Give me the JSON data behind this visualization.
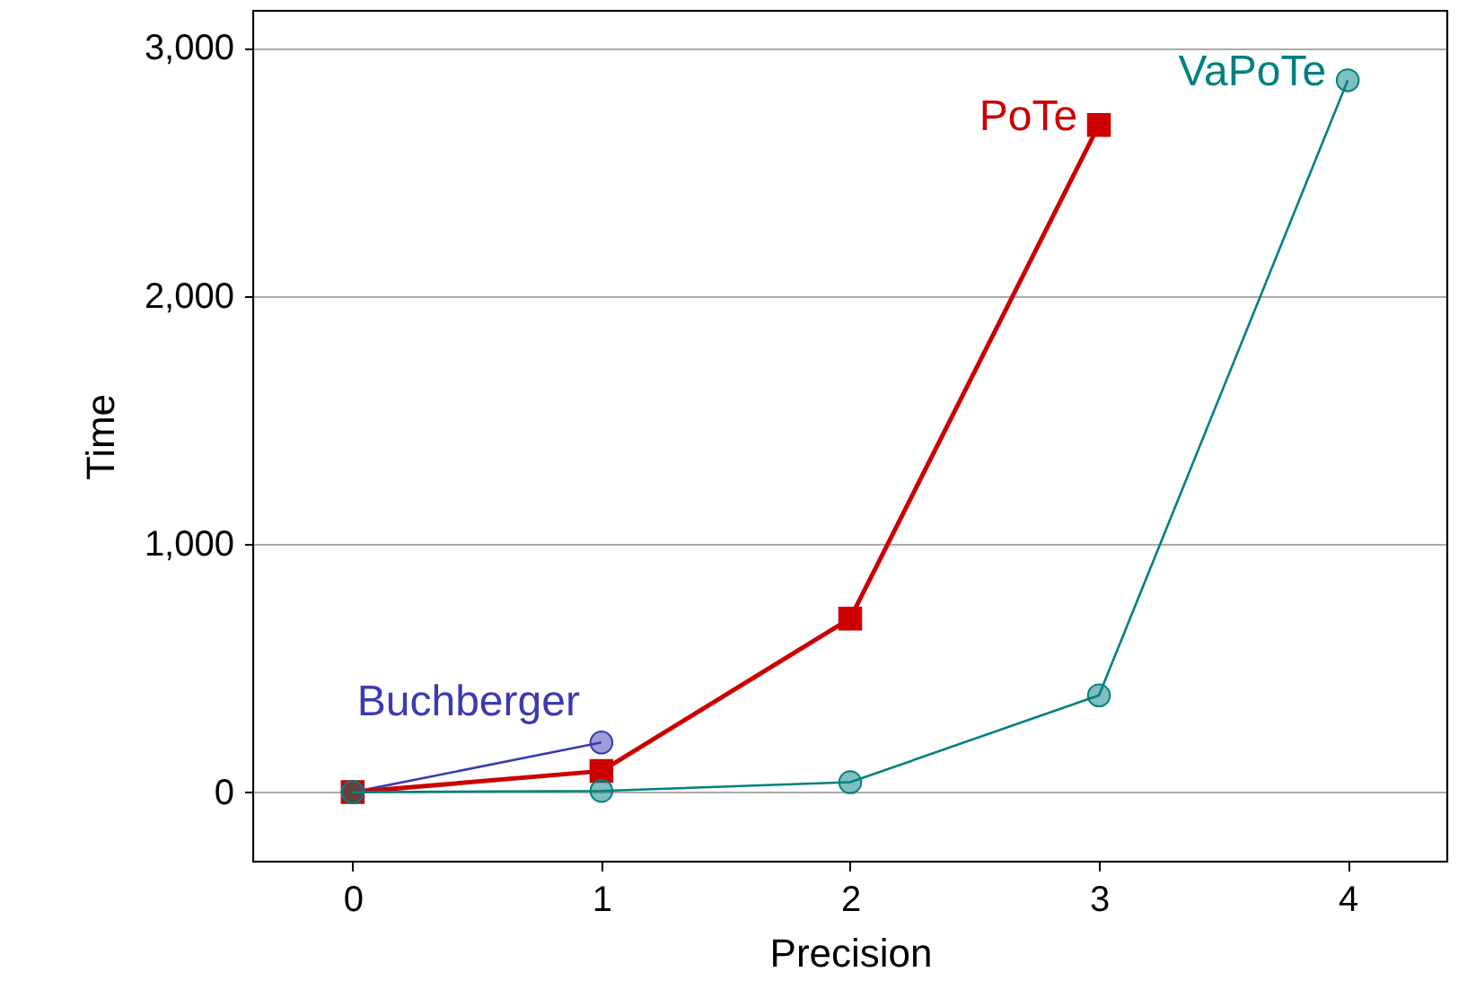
{
  "chart_data": {
    "type": "line",
    "xlabel": "Precision",
    "ylabel": "Time",
    "xlim": [
      -0.4,
      4.4
    ],
    "xticks": [
      0,
      1,
      2,
      3,
      4
    ],
    "ylim": [
      -280,
      3150
    ],
    "yticks": [
      {
        "value": 0,
        "label": "0"
      },
      {
        "value": 1000,
        "label": "1,000"
      },
      {
        "value": 2000,
        "label": "2,000"
      },
      {
        "value": 3000,
        "label": "3,000"
      }
    ],
    "grid": "y",
    "series": [
      {
        "name": "Buchberger",
        "color": "#3b3bb0",
        "marker": "circle",
        "x": [
          0,
          1
        ],
        "values": [
          0,
          200
        ]
      },
      {
        "name": "PoTe",
        "color": "#cc0000",
        "marker": "square",
        "x": [
          0,
          1,
          2,
          3
        ],
        "values": [
          0,
          85,
          700,
          2690
        ]
      },
      {
        "name": "VaPoTe",
        "color": "#008080",
        "marker": "circle",
        "x": [
          0,
          1,
          2,
          3,
          4
        ],
        "values": [
          0,
          5,
          40,
          390,
          2870
        ]
      }
    ]
  }
}
